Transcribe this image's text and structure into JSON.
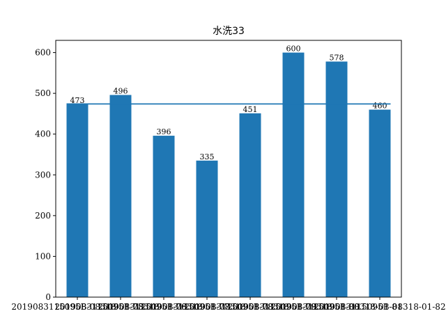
{
  "chart_data": {
    "type": "bar",
    "title": "水洗33",
    "categories": [
      "2019083115095B-08318-01-75",
      "2019083115095B-08318-01-76",
      "2019083115095B-08318-01-77",
      "2019083115095B-08318-01-78",
      "2019083115095B-08318-01-79",
      "2019083115095B-08318-01-80",
      "2019083115095B-08318-01-81",
      "2019083115095B-08318-01-82"
    ],
    "values": [
      473,
      496,
      396,
      335,
      451,
      600,
      578,
      460
    ],
    "mean_line": 474,
    "ylim": [
      0,
      630
    ],
    "yticks": [
      0,
      100,
      200,
      300,
      400,
      500,
      600
    ],
    "xlabel": "",
    "ylabel": "",
    "colors": {
      "bar": "#1f77b4",
      "line": "#1f77b4",
      "axis": "#000000"
    }
  }
}
